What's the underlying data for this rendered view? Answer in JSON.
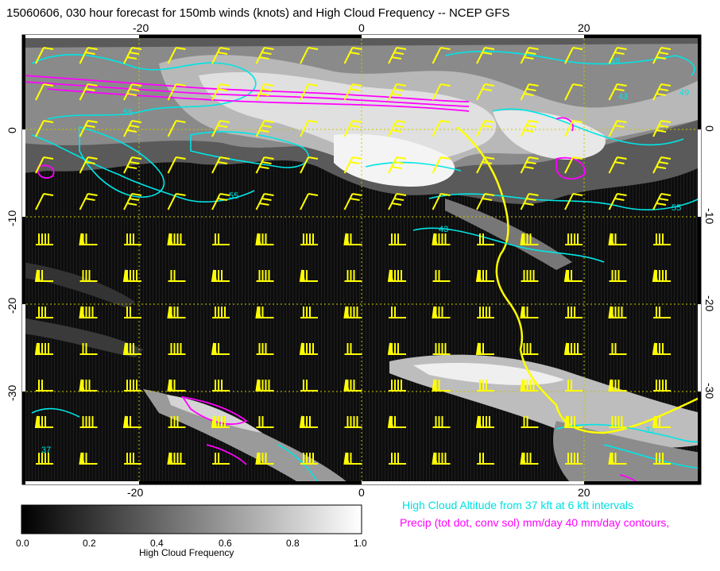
{
  "title": "15060606, 030 hour forecast for 150mb winds (knots) and High Cloud Frequency -- NCEP GFS",
  "axes": {
    "lon_ticks": [
      "-20",
      "0",
      "20"
    ],
    "lat_ticks": [
      "0",
      "-10",
      "-20",
      "-30"
    ]
  },
  "colorbar": {
    "tick_labels": [
      "0.0",
      "0.2",
      "0.4",
      "0.6",
      "0.8",
      "1.0"
    ],
    "title": "High Cloud Frequency"
  },
  "legend": {
    "cyan_text": "High Cloud Altitude from 37 kft at 6 kft intervals",
    "magenta_text": "Precip (tot dot, conv sol) mm/day 40 mm/day contours,"
  },
  "contour_labels": [
    "55",
    "55",
    "49",
    "49",
    "43",
    "55",
    "43",
    "37",
    "37"
  ],
  "colors": {
    "wind_barbs": "#ffff00",
    "cloud_altitude_contours": "#00ffff",
    "precip_contours": "#ff00ff",
    "grid": "#c8c800"
  }
}
